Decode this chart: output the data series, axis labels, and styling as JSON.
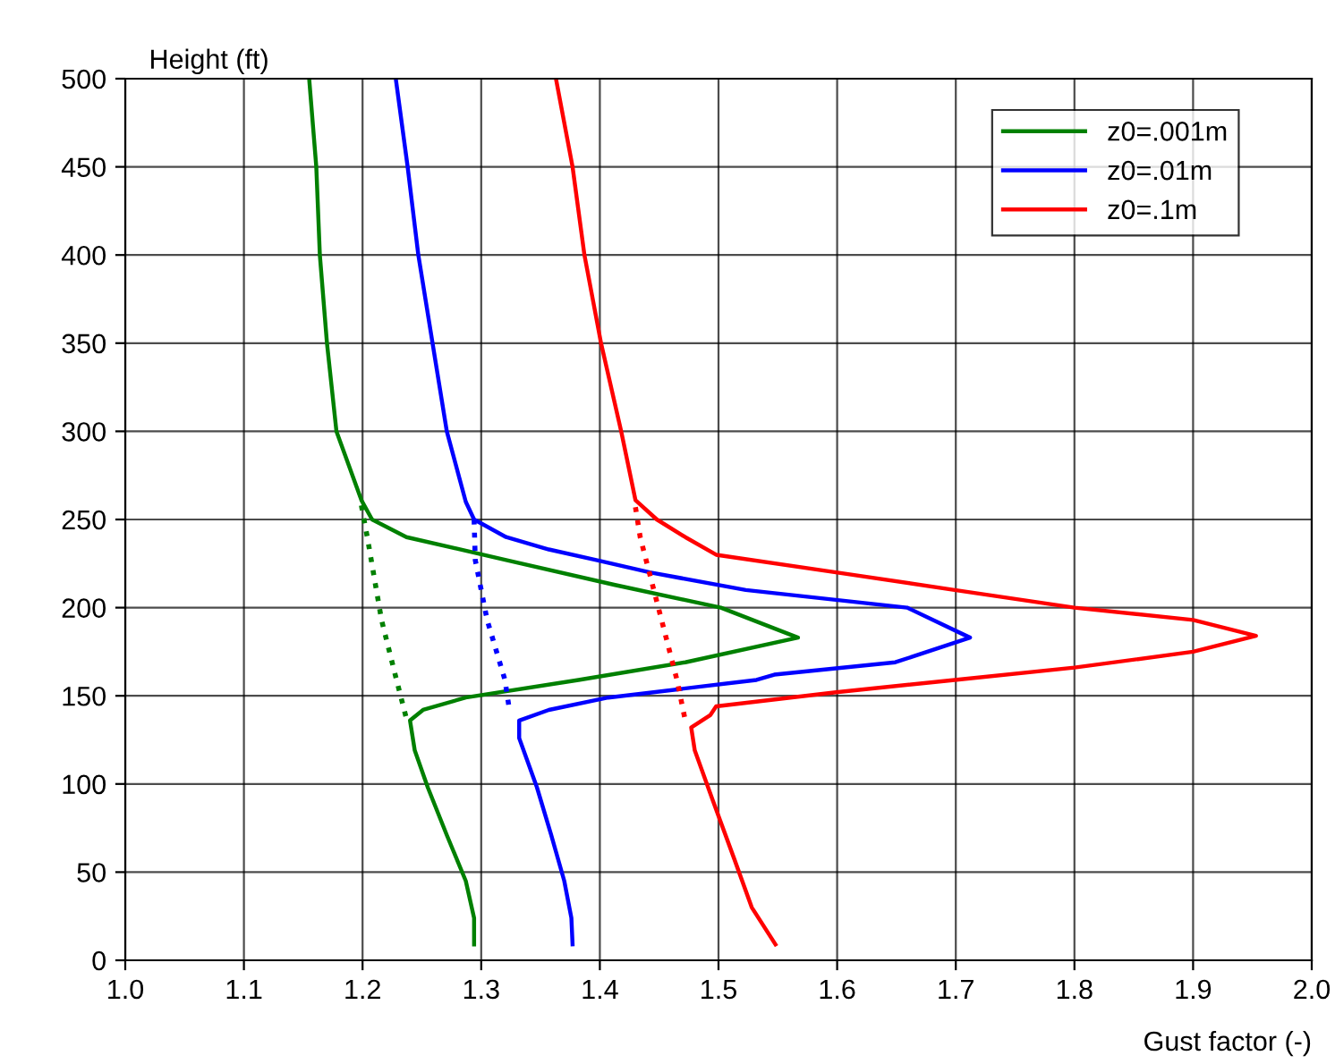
{
  "chart_data": {
    "type": "line",
    "xlabel": "Gust factor (-)",
    "ylabel": "Height (ft)",
    "xlim": [
      1.0,
      2.0
    ],
    "xticks": [
      {
        "value": 1.0,
        "label": "1.0"
      },
      1.1,
      1.2,
      1.3,
      1.4,
      1.5,
      1.6,
      1.7,
      1.8,
      1.9,
      {
        "value": 2.0,
        "label": "2.0"
      }
    ],
    "ylim": [
      0,
      500
    ],
    "yticks": [
      0,
      50,
      100,
      150,
      200,
      250,
      300,
      350,
      400,
      450,
      500
    ],
    "grid": true,
    "legend": "top right",
    "marker": "none",
    "series": [
      {
        "name": "z0=.001m",
        "color": "#008000",
        "line_style": "solid",
        "x": [
          1.155,
          1.161,
          1.164,
          1.17,
          1.178,
          1.199,
          1.208,
          1.237,
          1.321,
          1.412,
          1.502,
          1.567,
          1.472,
          1.382,
          1.287,
          1.251,
          1.24,
          1.244,
          1.255,
          1.271,
          1.287,
          1.294,
          1.294
        ],
        "values": [
          500,
          450,
          400,
          350,
          300,
          261,
          250,
          240,
          227,
          213,
          200,
          183,
          169,
          159,
          149,
          142,
          136,
          119,
          98,
          71,
          45,
          24,
          9
        ]
      },
      {
        "name": "z0=.01m",
        "color": "#0000ff",
        "line_style": "solid",
        "x": [
          1.228,
          1.238,
          1.247,
          1.259,
          1.271,
          1.287,
          1.294,
          1.321,
          1.357,
          1.397,
          1.442,
          1.523,
          1.659,
          1.712,
          1.649,
          1.547,
          1.532,
          1.407,
          1.357,
          1.332,
          1.332,
          1.347,
          1.359,
          1.37,
          1.376,
          1.377
        ],
        "values": [
          500,
          450,
          400,
          350,
          300,
          260,
          250,
          240,
          233,
          227,
          220,
          210,
          200,
          183,
          169,
          162,
          159,
          149,
          142,
          136,
          126,
          98,
          71,
          45,
          24,
          9
        ]
      },
      {
        "name": "z0=.1m",
        "color": "#ff0000",
        "line_style": "solid",
        "x": [
          1.363,
          1.377,
          1.387,
          1.401,
          1.418,
          1.43,
          1.448,
          1.472,
          1.498,
          1.599,
          1.699,
          1.8,
          1.9,
          1.953,
          1.9,
          1.8,
          1.699,
          1.599,
          1.498,
          1.493,
          1.477,
          1.48,
          1.495,
          1.513,
          1.528,
          1.548
        ],
        "values": [
          500,
          450,
          400,
          350,
          300,
          261,
          250,
          240,
          230,
          220,
          210,
          200,
          193,
          184,
          175,
          166,
          159,
          152,
          144,
          139,
          132,
          119,
          91,
          58,
          30,
          9
        ]
      },
      {
        "color": "#008000",
        "line_style": "dotted",
        "x": [
          1.199,
          1.204,
          1.216,
          1.226,
          1.237
        ],
        "values": [
          258,
          240,
          193,
          166,
          137
        ]
      },
      {
        "color": "#0000ff",
        "line_style": "dotted",
        "x": [
          1.294,
          1.295,
          1.305,
          1.32,
          1.324
        ],
        "values": [
          250,
          227,
          193,
          159,
          141
        ]
      },
      {
        "color": "#ff0000",
        "line_style": "dotted",
        "x": [
          1.43,
          1.434,
          1.452,
          1.465,
          1.472
        ],
        "values": [
          257,
          240,
          193,
          159,
          136
        ]
      }
    ]
  }
}
